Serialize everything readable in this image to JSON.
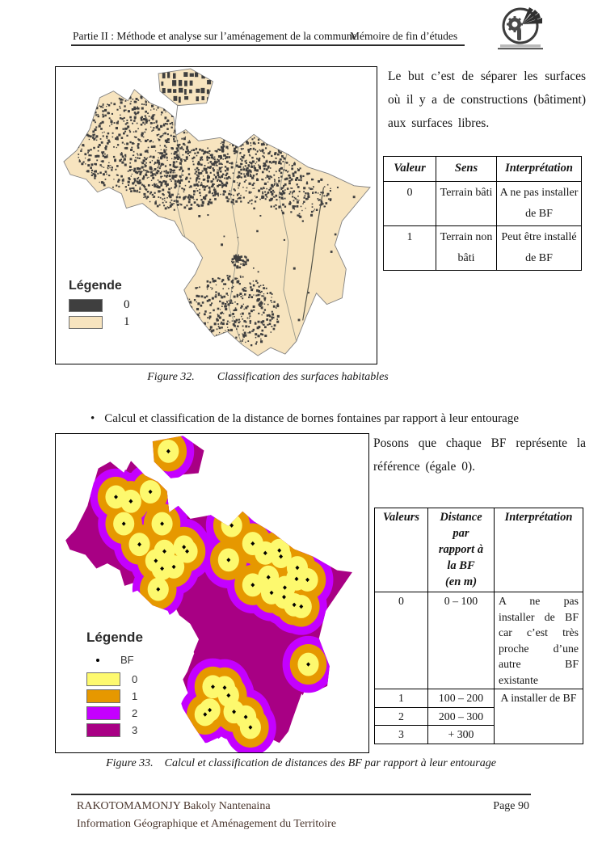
{
  "header": {
    "left": "Partie II : Méthode et analyse sur l’aménagement de la commune",
    "right": "Mémoire de fin d’études",
    "logo": "school-emblem"
  },
  "figure32": {
    "side_text": "Le but c’est de séparer les surfaces où il y a de constructions (bâtiment) aux surfaces libres.",
    "legend_title": "Légende",
    "legend_items": [
      {
        "label": "0",
        "color": "#3F3F3F"
      },
      {
        "label": "1",
        "color": "#F7E4BF"
      }
    ],
    "table": {
      "headers": [
        "Valeur",
        "Sens",
        "Interprétation"
      ],
      "rows": [
        [
          "0",
          "Terrain bâti",
          "A ne pas installer de BF"
        ],
        [
          "1",
          "Terrain non bâti",
          "Peut être installé de BF"
        ]
      ]
    },
    "caption_label": "Figure 32.",
    "caption_text": "Classification des surfaces habitables"
  },
  "bullet_text": "Calcul et classification de la distance de bornes fontaines par rapport à leur entourage",
  "figure33": {
    "side_text": "Posons que chaque BF représente la référence (égale 0).",
    "legend_title": "Légende",
    "legend_point_label": "BF",
    "legend_items": [
      {
        "label": "0",
        "color": "#FDF96E"
      },
      {
        "label": "1",
        "color": "#E69800"
      },
      {
        "label": "2",
        "color": "#C400FF"
      },
      {
        "label": "3",
        "color": "#A80084"
      }
    ],
    "table": {
      "headers": [
        "Valeurs",
        "Distance\npar\nrapport à\nla BF\n(en m)",
        "Interprétation"
      ],
      "rows": [
        [
          "0",
          "0 – 100",
          "A ne pas installer de BF car c’est très proche d’une autre BF existante"
        ],
        [
          "1",
          "100 – 200"
        ],
        [
          "2",
          "200 – 300"
        ],
        [
          "3",
          "+ 300"
        ]
      ],
      "merged_interpretation": "A installer de BF"
    },
    "caption_label": "Figure 33.",
    "caption_text": "Calcul et classification de distances des BF par rapport à leur entourage"
  },
  "footer": {
    "author": "RAKOTOMAMONJY Bakoly Nantenaina",
    "program": "Information Géographique et Aménagement du Territoire",
    "page": "Page 90"
  }
}
